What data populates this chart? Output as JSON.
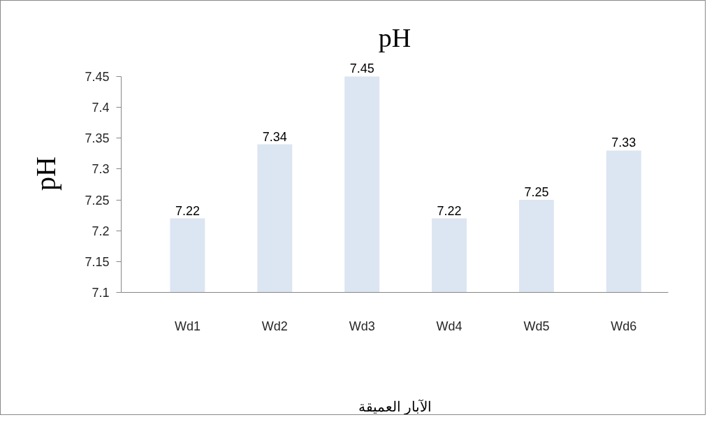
{
  "chart_data": {
    "type": "bar",
    "title": "pH",
    "ylabel": "pH",
    "xlabel": "الآبار العميقة",
    "categories": [
      "Wd1",
      "Wd2",
      "Wd3",
      "Wd4",
      "Wd5",
      "Wd6"
    ],
    "values": [
      7.22,
      7.34,
      7.45,
      7.22,
      7.25,
      7.33
    ],
    "color": "#dce6f2",
    "ylim": [
      7.1,
      7.45
    ],
    "yticks": [
      7.1,
      7.15,
      7.2,
      7.25,
      7.3,
      7.35,
      7.4,
      7.45
    ],
    "data_labels": true
  }
}
